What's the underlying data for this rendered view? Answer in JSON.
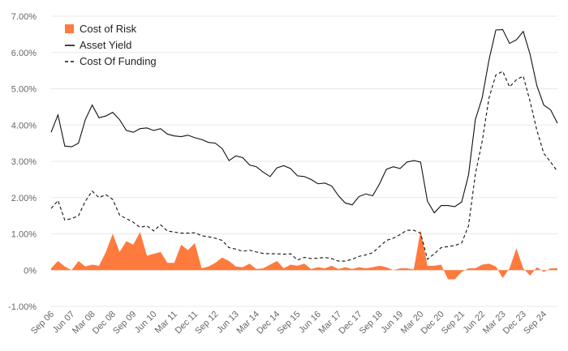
{
  "chart_data": {
    "type": "line",
    "title": "",
    "xlabel": "",
    "ylabel": "",
    "ylim": [
      -0.01,
      0.07
    ],
    "y_ticks": [
      {
        "value": -0.01,
        "label": "-1.00%"
      },
      {
        "value": 0.0,
        "label": "0%"
      },
      {
        "value": 0.01,
        "label": "1.00%"
      },
      {
        "value": 0.02,
        "label": "2.00%"
      },
      {
        "value": 0.03,
        "label": "3.00%"
      },
      {
        "value": 0.04,
        "label": "4.00%"
      },
      {
        "value": 0.05,
        "label": "5.00%"
      },
      {
        "value": 0.06,
        "label": "6.00%"
      },
      {
        "value": 0.07,
        "label": "7.00%"
      }
    ],
    "x_ticks": [
      {
        "label": "Sep 06",
        "index": 0
      },
      {
        "label": "Jun 07",
        "index": 3
      },
      {
        "label": "Mar 08",
        "index": 6
      },
      {
        "label": "Dec 08",
        "index": 9
      },
      {
        "label": "Sep 09",
        "index": 12
      },
      {
        "label": "Jun 10",
        "index": 15
      },
      {
        "label": "Mar 11",
        "index": 18
      },
      {
        "label": "Dec 11",
        "index": 21
      },
      {
        "label": "Sep 12",
        "index": 24
      },
      {
        "label": "Jun 13",
        "index": 27
      },
      {
        "label": "Mar 14",
        "index": 30
      },
      {
        "label": "Dec 14",
        "index": 33
      },
      {
        "label": "Sep 15",
        "index": 36
      },
      {
        "label": "Jun 16",
        "index": 39
      },
      {
        "label": "Mar 17",
        "index": 42
      },
      {
        "label": "Dec 17",
        "index": 45
      },
      {
        "label": "Sep 18",
        "index": 48
      },
      {
        "label": "Jun 19",
        "index": 51
      },
      {
        "label": "Mar 20",
        "index": 54
      },
      {
        "label": "Dec 20",
        "index": 57
      },
      {
        "label": "Sep 21",
        "index": 60
      },
      {
        "label": "Jun 22",
        "index": 63
      },
      {
        "label": "Mar 23",
        "index": 66
      },
      {
        "label": "Dec 23",
        "index": 69
      },
      {
        "label": "Sep 24",
        "index": 72
      }
    ],
    "num_points": 75,
    "legend": {
      "placement": "top-left",
      "entries": [
        "Cost of Risk",
        "Asset Yield",
        "Cost Of Funding"
      ]
    },
    "colors": {
      "cost_of_risk": "#FF7A3D",
      "asset_yield": "#111111",
      "cost_of_funding": "#111111",
      "grid": "#e8e8e8",
      "tick_text": "#666666"
    },
    "series": [
      {
        "name": "Cost of Risk",
        "style": "area",
        "values": [
          0.0005,
          0.0025,
          0.001,
          0.0,
          0.0025,
          0.001,
          0.0015,
          0.0012,
          0.005,
          0.01,
          0.005,
          0.008,
          0.007,
          0.0105,
          0.004,
          0.0045,
          0.005,
          0.002,
          0.002,
          0.007,
          0.0055,
          0.0075,
          0.0005,
          0.001,
          0.002,
          0.0035,
          0.0025,
          0.001,
          0.0008,
          0.0018,
          0.0003,
          0.0005,
          0.0015,
          0.0025,
          0.0005,
          0.0015,
          0.0012,
          0.0018,
          0.0003,
          0.0008,
          0.0005,
          0.0012,
          0.0003,
          0.0008,
          0.0003,
          0.0008,
          0.0005,
          0.0008,
          0.0012,
          0.0008,
          0.0,
          0.0005,
          0.0005,
          0.0002,
          0.011,
          0.0012,
          0.0012,
          0.0015,
          -0.0025,
          -0.0025,
          -0.0005,
          0.0005,
          0.0005,
          0.0015,
          0.0018,
          0.001,
          -0.0022,
          0.0005,
          0.006,
          0.0005,
          -0.0015,
          0.0008,
          -0.0005,
          0.0005,
          0.0005
        ]
      },
      {
        "name": "Asset Yield",
        "style": "solid",
        "values": [
          0.038,
          0.0428,
          0.0342,
          0.034,
          0.035,
          0.0415,
          0.0455,
          0.042,
          0.0425,
          0.0435,
          0.0415,
          0.0385,
          0.038,
          0.039,
          0.0392,
          0.0385,
          0.039,
          0.0375,
          0.037,
          0.0368,
          0.0372,
          0.0365,
          0.036,
          0.0352,
          0.035,
          0.0335,
          0.0302,
          0.0315,
          0.031,
          0.029,
          0.0285,
          0.027,
          0.0258,
          0.0282,
          0.0288,
          0.028,
          0.026,
          0.0258,
          0.025,
          0.0238,
          0.024,
          0.0232,
          0.0205,
          0.0185,
          0.018,
          0.0203,
          0.021,
          0.0205,
          0.0238,
          0.0278,
          0.0285,
          0.028,
          0.0298,
          0.0302,
          0.0298,
          0.019,
          0.0158,
          0.0178,
          0.0178,
          0.0175,
          0.0188,
          0.0262,
          0.0415,
          0.0475,
          0.058,
          0.0662,
          0.0663,
          0.0625,
          0.0635,
          0.0658,
          0.0595,
          0.0508,
          0.0455,
          0.0442,
          0.0405
        ]
      },
      {
        "name": "Cost Of Funding",
        "style": "dashed",
        "values": [
          0.017,
          0.0192,
          0.0138,
          0.0142,
          0.015,
          0.019,
          0.0218,
          0.02,
          0.0208,
          0.0195,
          0.0152,
          0.0142,
          0.0132,
          0.0118,
          0.0122,
          0.0108,
          0.0125,
          0.0108,
          0.0105,
          0.0102,
          0.0102,
          0.0103,
          0.0095,
          0.0092,
          0.0088,
          0.0082,
          0.0062,
          0.0058,
          0.0052,
          0.0055,
          0.005,
          0.0046,
          0.0045,
          0.0045,
          0.0044,
          0.0045,
          0.0028,
          0.0035,
          0.0032,
          0.0033,
          0.0035,
          0.0032,
          0.0025,
          0.0025,
          0.003,
          0.0038,
          0.0042,
          0.0048,
          0.0065,
          0.0082,
          0.0088,
          0.0098,
          0.011,
          0.011,
          0.0102,
          0.003,
          0.0045,
          0.0062,
          0.0065,
          0.0068,
          0.0075,
          0.0122,
          0.0265,
          0.0355,
          0.0475,
          0.0538,
          0.0548,
          0.0505,
          0.0525,
          0.0535,
          0.0465,
          0.0385,
          0.0322,
          0.0298,
          0.0272
        ]
      }
    ]
  }
}
